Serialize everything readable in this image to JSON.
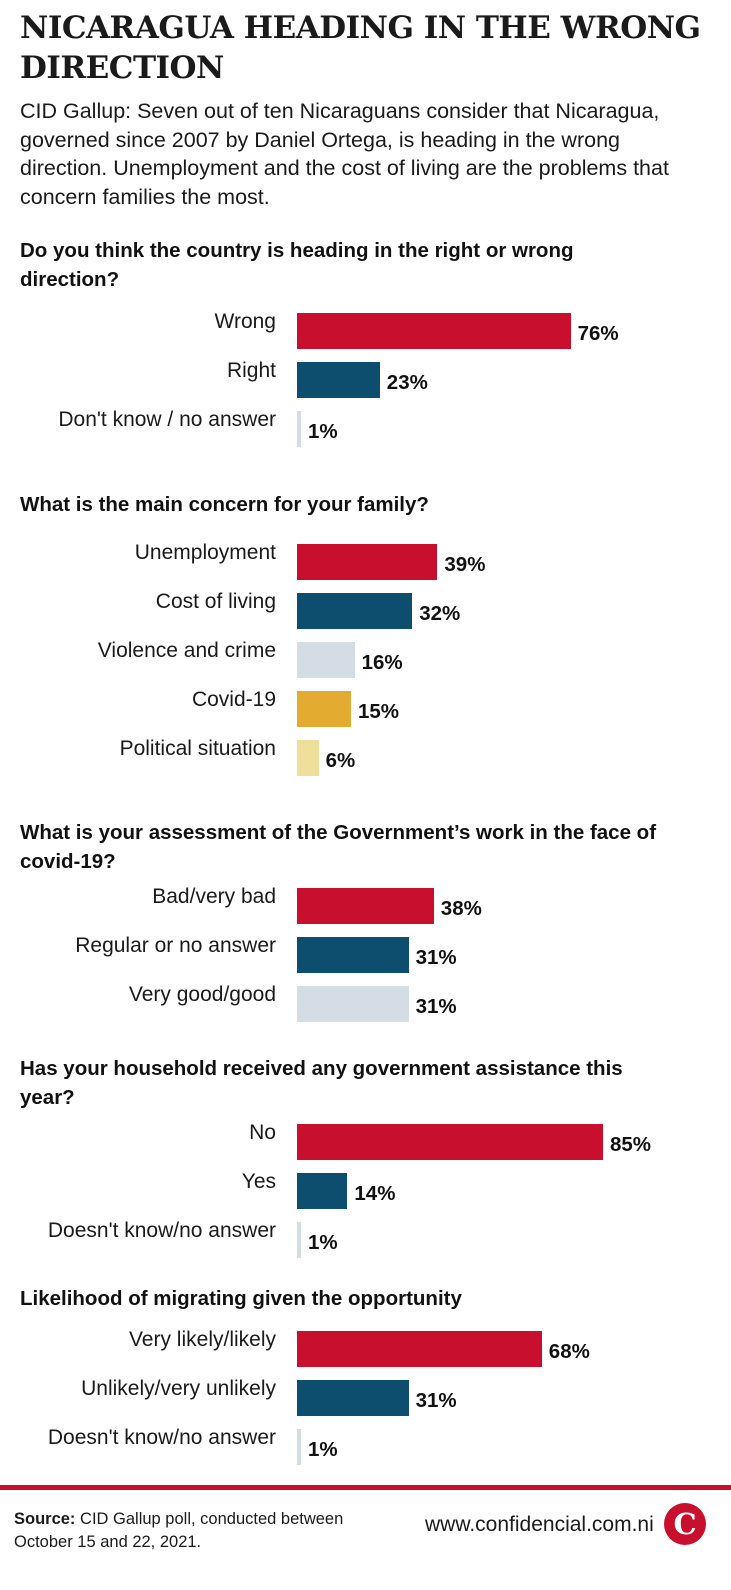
{
  "title": "NICARAGUA HEADING IN THE WRONG DIRECTION",
  "subtitle": "CID Gallup: Seven out of ten Nicaraguans consider that Nicaragua, governed since 2007 by Daniel Ortega, is heading in the wrong direction. Unemployment and the cost of living are the problems that concern families the most.",
  "colors": {
    "red": "#c8102e",
    "blue": "#0d4d6e",
    "light_gray": "#d4dde5",
    "gold": "#e3ab2f",
    "pale_yellow": "#f0df9a"
  },
  "chart_data": [
    {
      "type": "bar",
      "orientation": "horizontal",
      "title": "Do you think the country is heading in the right or wrong direction?",
      "categories": [
        "Wrong",
        "Right",
        "Don't know / no answer"
      ],
      "values": [
        76,
        23,
        1
      ],
      "value_labels": [
        "76%",
        "23%",
        "1%"
      ],
      "colors": [
        "#c8102e",
        "#0d4d6e",
        "#d4dde5"
      ],
      "unit": "%"
    },
    {
      "type": "bar",
      "orientation": "horizontal",
      "title": "What is the main concern for your family?",
      "categories": [
        "Unemployment",
        "Cost of living",
        "Violence and crime",
        "Covid-19",
        "Political situation"
      ],
      "values": [
        39,
        32,
        16,
        15,
        6
      ],
      "value_labels": [
        "39%",
        "32%",
        "16%",
        "15%",
        "6%"
      ],
      "colors": [
        "#c8102e",
        "#0d4d6e",
        "#d4dde5",
        "#e3ab2f",
        "#f0df9a"
      ],
      "unit": "%"
    },
    {
      "type": "bar",
      "orientation": "horizontal",
      "title": "What is your assessment of the Government’s work in the face of covid-19?",
      "categories": [
        "Bad/very bad",
        "Regular or no answer",
        "Very good/good"
      ],
      "values": [
        38,
        31,
        31
      ],
      "value_labels": [
        "38%",
        "31%",
        "31%"
      ],
      "colors": [
        "#c8102e",
        "#0d4d6e",
        "#d4dde5"
      ],
      "unit": "%"
    },
    {
      "type": "bar",
      "orientation": "horizontal",
      "title": "Has your household received any government assistance this year?",
      "categories": [
        "No",
        "Yes",
        "Doesn't know/no answer"
      ],
      "values": [
        85,
        14,
        1
      ],
      "value_labels": [
        "85%",
        "14%",
        "1%"
      ],
      "colors": [
        "#c8102e",
        "#0d4d6e",
        "#d4dde5"
      ],
      "unit": "%"
    },
    {
      "type": "bar",
      "orientation": "horizontal",
      "title": "Likelihood of migrating given the opportunity",
      "categories": [
        "Very likely/likely",
        "Unlikely/very unlikely",
        "Doesn't know/no answer"
      ],
      "values": [
        68,
        31,
        1
      ],
      "value_labels": [
        "68%",
        "31%",
        "1%"
      ],
      "colors": [
        "#c8102e",
        "#0d4d6e",
        "#d4dde5"
      ],
      "unit": "%"
    }
  ],
  "footer": {
    "source_label": "Source:",
    "source_text": "CID Gallup poll, conducted between October 15 and 22, 2021.",
    "website": "www.confidencial.com.ni",
    "logo_letter": "C"
  }
}
